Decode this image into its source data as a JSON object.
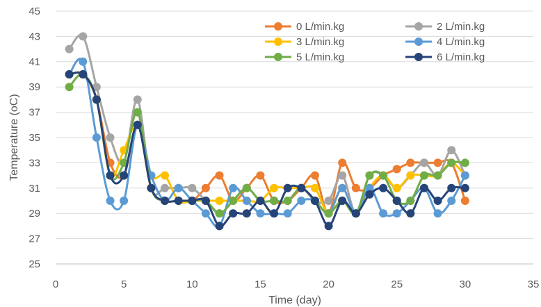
{
  "chart_data": {
    "type": "scatter",
    "title": "",
    "xlabel": "Time (day)",
    "ylabel": "Temperature (oC)",
    "xlim": [
      0,
      35
    ],
    "ylim": [
      25,
      45
    ],
    "xticks": [
      "0",
      "5",
      "10",
      "15",
      "20",
      "25",
      "30",
      "35"
    ],
    "yticks": [
      "25",
      "27",
      "29",
      "31",
      "33",
      "35",
      "37",
      "39",
      "41",
      "43",
      "45"
    ],
    "grid": "horizontal",
    "smooth": true,
    "legend_position": "top-right",
    "x": [
      1,
      2,
      3,
      4,
      5,
      6,
      7,
      8,
      9,
      10,
      11,
      12,
      13,
      14,
      15,
      16,
      17,
      18,
      19,
      20,
      21,
      22,
      23,
      24,
      25,
      26,
      27,
      28,
      29,
      30
    ],
    "series": [
      {
        "name": "0 L/min.kg",
        "color": "#ED7D31",
        "values": [
          40,
          40,
          38,
          33,
          32,
          36,
          31,
          30,
          30,
          30,
          31,
          32,
          30,
          31,
          32,
          30,
          30,
          31,
          32,
          29,
          33,
          31,
          31,
          32,
          32.5,
          33,
          33,
          33,
          33,
          30
        ]
      },
      {
        "name": "2 L/min.kg",
        "color": "#A5A5A5",
        "values": [
          42,
          43,
          39,
          35,
          33,
          38,
          31,
          31,
          31,
          31,
          30,
          29,
          30,
          31,
          30,
          30,
          30,
          31,
          30,
          30,
          32,
          29,
          32,
          32,
          31,
          32,
          33,
          32,
          34,
          32
        ]
      },
      {
        "name": "3 L/min.kg",
        "color": "#FFC000",
        "values": [
          40,
          40,
          38,
          32,
          34,
          36,
          32,
          32,
          30,
          30,
          30,
          30,
          30,
          30,
          30,
          31,
          31,
          31,
          31,
          29,
          31,
          29,
          31,
          32,
          31,
          32,
          32,
          32,
          33,
          32
        ]
      },
      {
        "name": "4 L/min.kg",
        "color": "#5B9BD5",
        "values": [
          40,
          41,
          35,
          30,
          30,
          36,
          32,
          30,
          31,
          30,
          29,
          28,
          31,
          30,
          29,
          29,
          29,
          30,
          30,
          29,
          31,
          29,
          31,
          29,
          29,
          30,
          31,
          29,
          30,
          32
        ]
      },
      {
        "name": "5 L/min.kg",
        "color": "#70AD47",
        "values": [
          39,
          40,
          38,
          32,
          33,
          37,
          31,
          30,
          30,
          30,
          30,
          29,
          30,
          31,
          30,
          30,
          30,
          31,
          30,
          29,
          30,
          29,
          32,
          32,
          30,
          30,
          32,
          32,
          33,
          33
        ]
      },
      {
        "name": "6 L/min.kg",
        "color": "#264478",
        "values": [
          40,
          40,
          38,
          32,
          32,
          36,
          31,
          30,
          30,
          30,
          30,
          28,
          29,
          29,
          30,
          29,
          31,
          31,
          30,
          28,
          30,
          29,
          30.5,
          31,
          30,
          29,
          31,
          30,
          31,
          31
        ]
      }
    ]
  }
}
